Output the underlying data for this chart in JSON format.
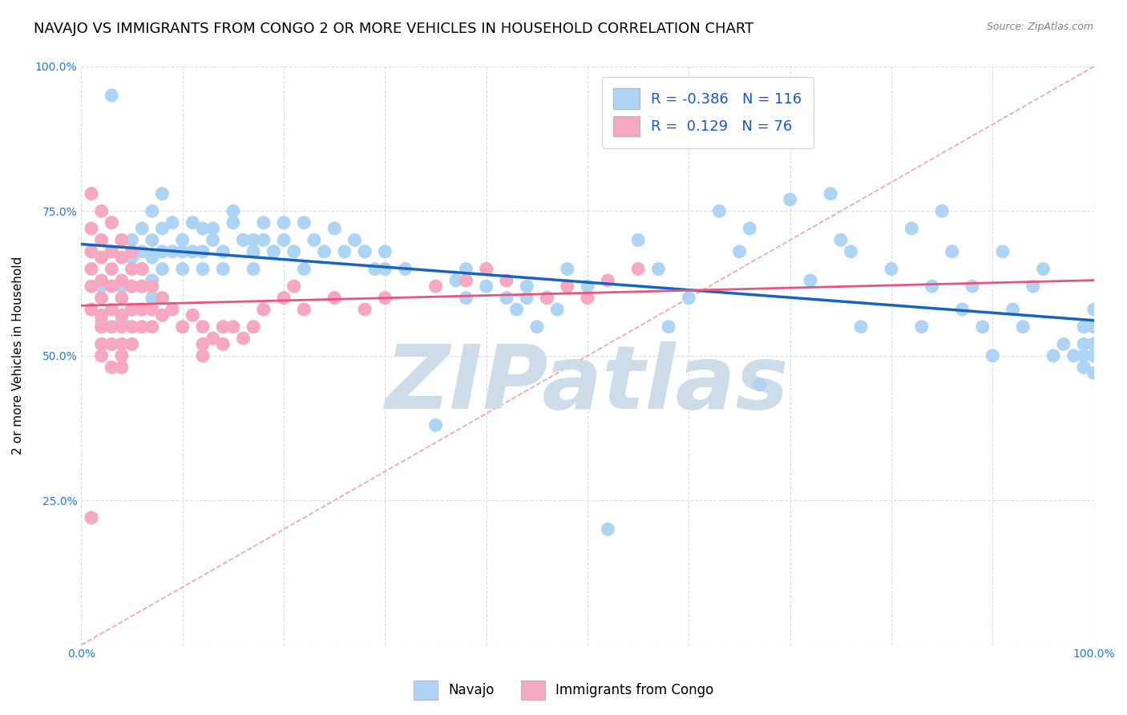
{
  "title": "NAVAJO VS IMMIGRANTS FROM CONGO 2 OR MORE VEHICLES IN HOUSEHOLD CORRELATION CHART",
  "source": "Source: ZipAtlas.com",
  "ylabel": "2 or more Vehicles in Household",
  "xlim": [
    0.0,
    1.0
  ],
  "ylim": [
    0.0,
    1.0
  ],
  "xticks": [
    0.0,
    0.1,
    0.2,
    0.3,
    0.4,
    0.5,
    0.6,
    0.7,
    0.8,
    0.9,
    1.0
  ],
  "yticks": [
    0.0,
    0.25,
    0.5,
    0.75,
    1.0
  ],
  "navajo_R": -0.386,
  "navajo_N": 116,
  "congo_R": 0.129,
  "congo_N": 76,
  "navajo_color": "#aed4f5",
  "congo_color": "#f5a8c0",
  "trend_navajo_color": "#1565c0",
  "trend_congo_color": "#e8547a",
  "diag_color": "#f0a0b0",
  "background_color": "#ffffff",
  "grid_color": "#dddddd",
  "watermark": "ZIPatlas",
  "watermark_color": "#ccdce8",
  "title_fontsize": 13,
  "axis_label_fontsize": 11,
  "tick_fontsize": 10,
  "legend_fontsize": 13,
  "tick_color": "#2277dd",
  "navajo_x": [
    0.02,
    0.02,
    0.03,
    0.04,
    0.04,
    0.05,
    0.05,
    0.05,
    0.05,
    0.06,
    0.06,
    0.06,
    0.06,
    0.06,
    0.07,
    0.07,
    0.07,
    0.07,
    0.07,
    0.08,
    0.08,
    0.08,
    0.08,
    0.09,
    0.09,
    0.1,
    0.1,
    0.1,
    0.11,
    0.11,
    0.12,
    0.12,
    0.12,
    0.13,
    0.14,
    0.14,
    0.15,
    0.16,
    0.17,
    0.17,
    0.18,
    0.18,
    0.19,
    0.2,
    0.21,
    0.22,
    0.23,
    0.24,
    0.25,
    0.26,
    0.27,
    0.28,
    0.29,
    0.3,
    0.32,
    0.35,
    0.37,
    0.38,
    0.4,
    0.42,
    0.43,
    0.44,
    0.45,
    0.46,
    0.47,
    0.48,
    0.5,
    0.52,
    0.55,
    0.57,
    0.58,
    0.6,
    0.63,
    0.65,
    0.66,
    0.67,
    0.7,
    0.72,
    0.74,
    0.75,
    0.76,
    0.77,
    0.8,
    0.82,
    0.83,
    0.84,
    0.85,
    0.86,
    0.87,
    0.88,
    0.89,
    0.9,
    0.91,
    0.92,
    0.93,
    0.94,
    0.95,
    0.96,
    0.97,
    0.98,
    0.99,
    0.99,
    0.99,
    0.99,
    0.99,
    1.0,
    1.0,
    1.0,
    1.0,
    1.0,
    1.0,
    1.0,
    0.19,
    0.22,
    0.3,
    0.2,
    0.38,
    0.44,
    0.17,
    0.13,
    0.28,
    0.46,
    0.15,
    0.16
  ],
  "navajo_y": [
    0.62,
    0.56,
    0.95,
    0.62,
    0.56,
    0.7,
    0.67,
    0.62,
    0.58,
    0.72,
    0.68,
    0.65,
    0.62,
    0.58,
    0.75,
    0.7,
    0.67,
    0.63,
    0.6,
    0.78,
    0.72,
    0.68,
    0.65,
    0.73,
    0.68,
    0.7,
    0.68,
    0.65,
    0.73,
    0.68,
    0.72,
    0.68,
    0.65,
    0.7,
    0.68,
    0.65,
    0.73,
    0.7,
    0.68,
    0.65,
    0.73,
    0.7,
    0.68,
    0.7,
    0.68,
    0.73,
    0.7,
    0.68,
    0.72,
    0.68,
    0.7,
    0.68,
    0.65,
    0.68,
    0.65,
    0.38,
    0.63,
    0.6,
    0.62,
    0.6,
    0.58,
    0.62,
    0.55,
    0.6,
    0.58,
    0.65,
    0.62,
    0.2,
    0.7,
    0.65,
    0.55,
    0.6,
    0.75,
    0.68,
    0.72,
    0.45,
    0.77,
    0.63,
    0.78,
    0.7,
    0.68,
    0.55,
    0.65,
    0.72,
    0.55,
    0.62,
    0.75,
    0.68,
    0.58,
    0.62,
    0.55,
    0.5,
    0.68,
    0.58,
    0.55,
    0.62,
    0.65,
    0.5,
    0.52,
    0.5,
    0.48,
    0.55,
    0.52,
    0.5,
    0.48,
    0.58,
    0.55,
    0.52,
    0.5,
    0.47,
    0.5,
    0.52,
    0.68,
    0.65,
    0.65,
    0.73,
    0.65,
    0.6,
    0.7,
    0.72,
    0.68,
    0.6,
    0.75,
    0.7
  ],
  "congo_x": [
    0.01,
    0.01,
    0.01,
    0.01,
    0.01,
    0.01,
    0.01,
    0.02,
    0.02,
    0.02,
    0.02,
    0.02,
    0.02,
    0.02,
    0.02,
    0.02,
    0.03,
    0.03,
    0.03,
    0.03,
    0.03,
    0.03,
    0.03,
    0.03,
    0.04,
    0.04,
    0.04,
    0.04,
    0.04,
    0.04,
    0.04,
    0.04,
    0.04,
    0.05,
    0.05,
    0.05,
    0.05,
    0.05,
    0.05,
    0.06,
    0.06,
    0.06,
    0.06,
    0.07,
    0.07,
    0.07,
    0.08,
    0.08,
    0.09,
    0.1,
    0.11,
    0.12,
    0.12,
    0.12,
    0.13,
    0.14,
    0.14,
    0.15,
    0.16,
    0.17,
    0.18,
    0.2,
    0.21,
    0.22,
    0.25,
    0.28,
    0.3,
    0.35,
    0.38,
    0.4,
    0.42,
    0.46,
    0.48,
    0.5,
    0.52,
    0.55
  ],
  "congo_y": [
    0.78,
    0.72,
    0.68,
    0.65,
    0.62,
    0.58,
    0.22,
    0.75,
    0.7,
    0.67,
    0.63,
    0.6,
    0.57,
    0.55,
    0.52,
    0.5,
    0.73,
    0.68,
    0.65,
    0.62,
    0.58,
    0.55,
    0.52,
    0.48,
    0.7,
    0.67,
    0.63,
    0.6,
    0.57,
    0.55,
    0.52,
    0.5,
    0.48,
    0.68,
    0.65,
    0.62,
    0.58,
    0.55,
    0.52,
    0.65,
    0.62,
    0.58,
    0.55,
    0.62,
    0.58,
    0.55,
    0.6,
    0.57,
    0.58,
    0.55,
    0.57,
    0.55,
    0.52,
    0.5,
    0.53,
    0.55,
    0.52,
    0.55,
    0.53,
    0.55,
    0.58,
    0.6,
    0.62,
    0.58,
    0.6,
    0.58,
    0.6,
    0.62,
    0.63,
    0.65,
    0.63,
    0.6,
    0.62,
    0.6,
    0.63,
    0.65
  ]
}
